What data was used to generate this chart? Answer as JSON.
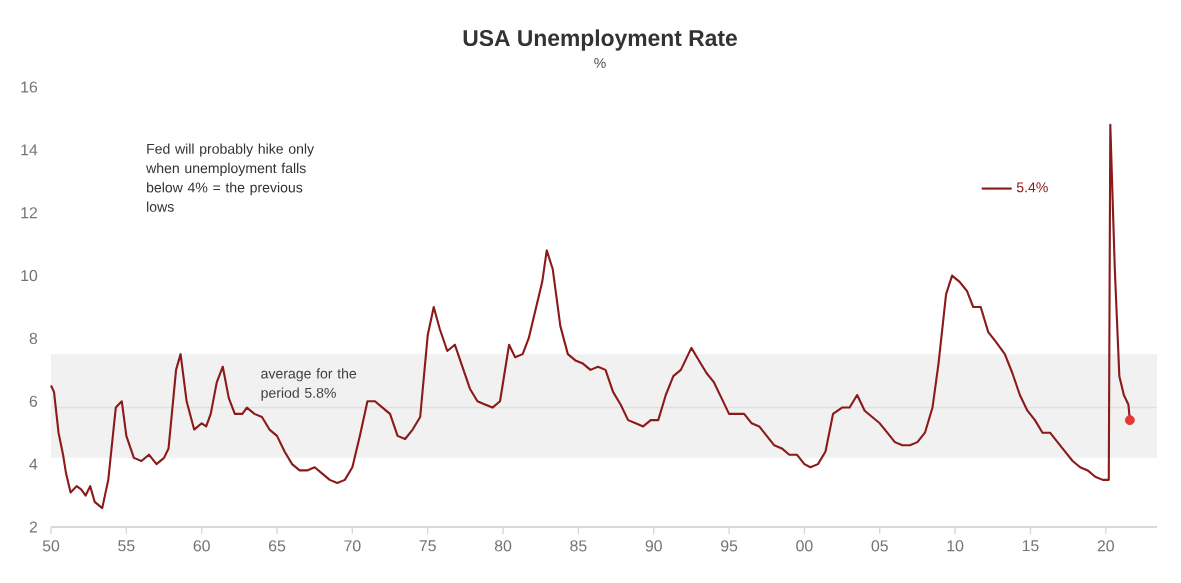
{
  "chart_data": {
    "type": "line",
    "title": "USA Unemployment Rate",
    "subtitle": "%",
    "annotations": [
      "Fed will probably hike only when unemployment falls below 4% = the previous lows"
    ],
    "xlim": [
      1950,
      2023.4
    ],
    "xticks": [
      {
        "value": 1950,
        "label": "50"
      },
      {
        "value": 1955,
        "label": "55"
      },
      {
        "value": 1960,
        "label": "60"
      },
      {
        "value": 1965,
        "label": "65"
      },
      {
        "value": 1970,
        "label": "70"
      },
      {
        "value": 1975,
        "label": "75"
      },
      {
        "value": 1980,
        "label": "80"
      },
      {
        "value": 1985,
        "label": "85"
      },
      {
        "value": 1990,
        "label": "90"
      },
      {
        "value": 1995,
        "label": "95"
      },
      {
        "value": 2000,
        "label": "00"
      },
      {
        "value": 2005,
        "label": "05"
      },
      {
        "value": 2010,
        "label": "10"
      },
      {
        "value": 2015,
        "label": "15"
      },
      {
        "value": 2020,
        "label": "20"
      }
    ],
    "ylim": [
      2,
      16
    ],
    "yticks": [
      2,
      4,
      6,
      8,
      10,
      12,
      14,
      16
    ],
    "ref_lines": [
      {
        "axis": "y",
        "value": 5.8,
        "label": "average for the period 5.8%",
        "color": "#e0e0e0"
      }
    ],
    "bands": [
      {
        "axis": "y",
        "from": 4.2,
        "to": 7.5,
        "color": "#f1f1f1"
      }
    ],
    "legend": "top right",
    "series": [
      {
        "name": "5.4%",
        "color": "#8b1a1a",
        "marker": "none",
        "x": [
          1950.0,
          1950.2,
          1950.5,
          1950.8,
          1951.0,
          1951.3,
          1951.7,
          1952.0,
          1952.3,
          1952.6,
          1952.9,
          1953.4,
          1953.8,
          1954.3,
          1954.7,
          1955.0,
          1955.5,
          1956.0,
          1956.5,
          1957.0,
          1957.5,
          1957.8,
          1958.3,
          1958.6,
          1959.0,
          1959.5,
          1960.0,
          1960.3,
          1960.6,
          1961.0,
          1961.4,
          1961.8,
          1962.2,
          1962.7,
          1963.0,
          1963.5,
          1964.0,
          1964.5,
          1965.0,
          1965.5,
          1966.0,
          1966.5,
          1967.0,
          1967.5,
          1968.0,
          1968.5,
          1969.0,
          1969.5,
          1970.0,
          1970.5,
          1971.0,
          1971.5,
          1972.0,
          1972.5,
          1973.0,
          1973.5,
          1974.0,
          1974.5,
          1975.0,
          1975.4,
          1975.8,
          1976.3,
          1976.8,
          1977.3,
          1977.8,
          1978.3,
          1978.8,
          1979.3,
          1979.8,
          1980.4,
          1980.8,
          1981.3,
          1981.7,
          1982.2,
          1982.6,
          1982.9,
          1983.3,
          1983.8,
          1984.3,
          1984.8,
          1985.3,
          1985.8,
          1986.3,
          1986.8,
          1987.3,
          1987.8,
          1988.3,
          1988.8,
          1989.3,
          1989.8,
          1990.3,
          1990.8,
          1991.3,
          1991.8,
          1992.5,
          1993.0,
          1993.5,
          1994.0,
          1994.5,
          1995.0,
          1995.5,
          1996.0,
          1996.5,
          1997.0,
          1997.5,
          1998.0,
          1998.5,
          1999.0,
          1999.5,
          2000.0,
          2000.4,
          2000.9,
          2001.4,
          2001.9,
          2002.5,
          2003.0,
          2003.5,
          2004.0,
          2004.5,
          2005.0,
          2005.5,
          2006.0,
          2006.5,
          2007.0,
          2007.5,
          2008.0,
          2008.5,
          2008.9,
          2009.4,
          2009.8,
          2010.3,
          2010.8,
          2011.2,
          2011.7,
          2012.2,
          2012.7,
          2013.3,
          2013.8,
          2014.3,
          2014.8,
          2015.3,
          2015.8,
          2016.3,
          2016.8,
          2017.3,
          2017.8,
          2018.3,
          2018.8,
          2019.3,
          2019.8,
          2020.2,
          2020.3,
          2020.6,
          2020.9,
          2021.2,
          2021.5,
          2021.6
        ],
        "values": [
          6.5,
          6.3,
          5.0,
          4.3,
          3.7,
          3.1,
          3.3,
          3.2,
          3.0,
          3.3,
          2.8,
          2.6,
          3.5,
          5.8,
          6.0,
          4.9,
          4.2,
          4.1,
          4.3,
          4.0,
          4.2,
          4.5,
          7.0,
          7.5,
          6.0,
          5.1,
          5.3,
          5.2,
          5.6,
          6.6,
          7.1,
          6.1,
          5.6,
          5.6,
          5.8,
          5.6,
          5.5,
          5.1,
          4.9,
          4.4,
          4.0,
          3.8,
          3.8,
          3.9,
          3.7,
          3.5,
          3.4,
          3.5,
          3.9,
          4.9,
          6.0,
          6.0,
          5.8,
          5.6,
          4.9,
          4.8,
          5.1,
          5.5,
          8.1,
          9.0,
          8.3,
          7.6,
          7.8,
          7.1,
          6.4,
          6.0,
          5.9,
          5.8,
          6.0,
          7.8,
          7.4,
          7.5,
          8.0,
          9.0,
          9.8,
          10.8,
          10.2,
          8.4,
          7.5,
          7.3,
          7.2,
          7.0,
          7.1,
          7.0,
          6.3,
          5.9,
          5.4,
          5.3,
          5.2,
          5.4,
          5.4,
          6.2,
          6.8,
          7.0,
          7.7,
          7.3,
          6.9,
          6.6,
          6.1,
          5.6,
          5.6,
          5.6,
          5.3,
          5.2,
          4.9,
          4.6,
          4.5,
          4.3,
          4.3,
          4.0,
          3.9,
          4.0,
          4.4,
          5.6,
          5.8,
          5.8,
          6.2,
          5.7,
          5.5,
          5.3,
          5.0,
          4.7,
          4.6,
          4.6,
          4.7,
          5.0,
          5.8,
          7.2,
          9.4,
          10.0,
          9.8,
          9.5,
          9.0,
          9.0,
          8.2,
          7.9,
          7.5,
          6.9,
          6.2,
          5.7,
          5.4,
          5.0,
          5.0,
          4.7,
          4.4,
          4.1,
          3.9,
          3.8,
          3.6,
          3.5,
          3.5,
          14.8,
          10.2,
          6.8,
          6.2,
          5.9,
          5.4
        ]
      },
      {
        "type": "scatter",
        "color": "#e53935",
        "marker": "circle",
        "x": [
          2021.6
        ],
        "values": [
          5.4
        ]
      }
    ]
  }
}
